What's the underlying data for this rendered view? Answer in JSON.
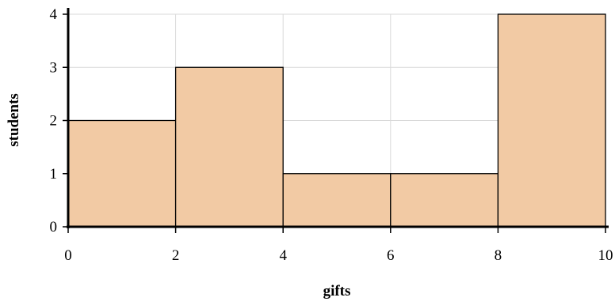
{
  "chart_data": {
    "type": "bar",
    "subtype": "histogram",
    "title": "",
    "xlabel": "gifts",
    "ylabel": "students",
    "bins": [
      {
        "from": 0,
        "to": 2,
        "value": 2
      },
      {
        "from": 2,
        "to": 4,
        "value": 3
      },
      {
        "from": 4,
        "to": 6,
        "value": 1
      },
      {
        "from": 6,
        "to": 8,
        "value": 1
      },
      {
        "from": 8,
        "to": 10,
        "value": 4
      }
    ],
    "xlim": [
      0,
      10
    ],
    "ylim": [
      0,
      4
    ],
    "x_ticks": [
      "0",
      "2",
      "4",
      "6",
      "8",
      "10"
    ],
    "y_ticks": [
      "0",
      "1",
      "2",
      "3",
      "4"
    ],
    "grid": true,
    "colors": {
      "bar_fill": "#f2caa4",
      "bar_stroke": "#000000",
      "grid": "#d9d9d9",
      "axis": "#000000"
    }
  }
}
